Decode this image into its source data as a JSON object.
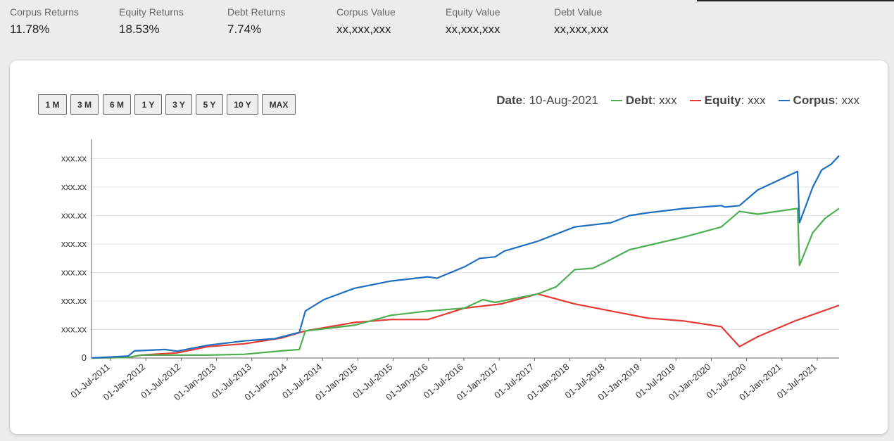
{
  "stats": [
    {
      "label": "Corpus Returns",
      "value": "11.78%"
    },
    {
      "label": "Equity Returns",
      "value": "18.53%"
    },
    {
      "label": "Debt Returns",
      "value": "7.74%"
    },
    {
      "label": "Corpus Value",
      "value": "xx,xxx,xxx"
    },
    {
      "label": "Equity Value",
      "value": "xx,xxx,xxx"
    },
    {
      "label": "Debt Value",
      "value": "xx,xxx,xxx"
    }
  ],
  "range_buttons": [
    "1 M",
    "3 M",
    "6 M",
    "1 Y",
    "3 Y",
    "5 Y",
    "10 Y",
    "MAX"
  ],
  "legend": {
    "date_label": "Date",
    "date_value": "10-Aug-2021",
    "items": [
      {
        "name": "Debt",
        "value": "xxx",
        "color": "#4caf50"
      },
      {
        "name": "Equity",
        "value": "xxx",
        "color": "#e53935"
      },
      {
        "name": "Corpus",
        "value": "xxx",
        "color": "#1e6fc0"
      }
    ]
  },
  "chart_data": {
    "type": "line",
    "title": "",
    "xlabel": "",
    "ylabel": "",
    "x_ticks": [
      "01-Jul-2011",
      "01-Jan-2012",
      "01-Jul-2012",
      "01-Jan-2013",
      "01-Jul-2013",
      "01-Jan-2014",
      "01-Jul-2014",
      "01-Jan-2015",
      "01-Jul-2015",
      "01-Jan-2016",
      "01-Jul-2016",
      "01-Jan-2017",
      "01-Jul-2017",
      "01-Jan-2018",
      "01-Jul-2018",
      "01-Jan-2019",
      "01-Jul-2019",
      "01-Jan-2020",
      "01-Jul-2020",
      "01-Jan-2021",
      "01-Jul-2021"
    ],
    "y_ticks": [
      "0",
      "xxx.xx",
      "xxx.xx",
      "xxx.xx",
      "xxx.xx",
      "xxx.xx",
      "xxx.xx",
      "xxx.xx"
    ],
    "ylim": [
      0,
      7.2
    ],
    "x_start": "2011-06-01",
    "x_end": "2021-08-10",
    "grid": true,
    "legend_position": "top-right",
    "series": [
      {
        "name": "Corpus",
        "color": "#1e6fc0",
        "points": [
          [
            "2011-06-01",
            0.0
          ],
          [
            "2011-12-01",
            0.07
          ],
          [
            "2012-01-01",
            0.25
          ],
          [
            "2012-06-01",
            0.3
          ],
          [
            "2012-08-01",
            0.24
          ],
          [
            "2013-01-01",
            0.45
          ],
          [
            "2013-07-01",
            0.6
          ],
          [
            "2013-12-01",
            0.68
          ],
          [
            "2014-04-01",
            0.9
          ],
          [
            "2014-05-01",
            1.65
          ],
          [
            "2014-08-01",
            2.05
          ],
          [
            "2015-01-01",
            2.45
          ],
          [
            "2015-07-01",
            2.7
          ],
          [
            "2016-01-01",
            2.85
          ],
          [
            "2016-02-15",
            2.8
          ],
          [
            "2016-07-01",
            3.2
          ],
          [
            "2016-09-15",
            3.5
          ],
          [
            "2016-12-01",
            3.55
          ],
          [
            "2017-01-15",
            3.75
          ],
          [
            "2017-07-01",
            4.1
          ],
          [
            "2018-01-01",
            4.6
          ],
          [
            "2018-07-01",
            4.75
          ],
          [
            "2018-10-01",
            5.0
          ],
          [
            "2019-01-01",
            5.1
          ],
          [
            "2019-07-01",
            5.25
          ],
          [
            "2020-01-01",
            5.35
          ],
          [
            "2020-01-20",
            5.3
          ],
          [
            "2020-04-01",
            5.35
          ],
          [
            "2020-07-01",
            5.9
          ],
          [
            "2021-01-15",
            6.55
          ],
          [
            "2021-01-25",
            4.75
          ],
          [
            "2021-04-01",
            6.0
          ],
          [
            "2021-05-15",
            6.6
          ],
          [
            "2021-07-01",
            6.8
          ],
          [
            "2021-08-10",
            7.1
          ]
        ]
      },
      {
        "name": "Debt",
        "color": "#4caf50",
        "points": [
          [
            "2011-06-01",
            0.0
          ],
          [
            "2011-12-01",
            0.02
          ],
          [
            "2012-02-01",
            0.1
          ],
          [
            "2013-01-01",
            0.1
          ],
          [
            "2013-07-01",
            0.13
          ],
          [
            "2014-01-01",
            0.25
          ],
          [
            "2014-04-01",
            0.3
          ],
          [
            "2014-05-01",
            0.95
          ],
          [
            "2015-01-01",
            1.15
          ],
          [
            "2015-07-01",
            1.5
          ],
          [
            "2016-01-01",
            1.65
          ],
          [
            "2016-07-01",
            1.75
          ],
          [
            "2016-10-01",
            2.05
          ],
          [
            "2016-12-01",
            1.95
          ],
          [
            "2017-07-01",
            2.25
          ],
          [
            "2017-10-01",
            2.5
          ],
          [
            "2018-01-01",
            3.1
          ],
          [
            "2018-04-01",
            3.15
          ],
          [
            "2018-06-01",
            3.35
          ],
          [
            "2018-10-01",
            3.8
          ],
          [
            "2019-01-01",
            3.95
          ],
          [
            "2019-07-01",
            4.25
          ],
          [
            "2020-01-01",
            4.6
          ],
          [
            "2020-04-01",
            5.15
          ],
          [
            "2020-07-01",
            5.05
          ],
          [
            "2021-01-15",
            5.25
          ],
          [
            "2021-01-25",
            3.25
          ],
          [
            "2021-04-01",
            4.4
          ],
          [
            "2021-06-01",
            4.9
          ],
          [
            "2021-08-10",
            5.25
          ]
        ]
      },
      {
        "name": "Equity",
        "color": "#e53935",
        "points": [
          [
            "2011-06-01",
            0.0
          ],
          [
            "2011-12-01",
            0.02
          ],
          [
            "2012-02-01",
            0.1
          ],
          [
            "2012-08-01",
            0.18
          ],
          [
            "2013-01-01",
            0.4
          ],
          [
            "2013-07-01",
            0.5
          ],
          [
            "2014-01-01",
            0.7
          ],
          [
            "2014-05-01",
            0.95
          ],
          [
            "2015-01-01",
            1.25
          ],
          [
            "2015-07-01",
            1.35
          ],
          [
            "2016-01-01",
            1.35
          ],
          [
            "2016-07-01",
            1.75
          ],
          [
            "2017-01-01",
            1.9
          ],
          [
            "2017-07-01",
            2.25
          ],
          [
            "2018-01-01",
            1.9
          ],
          [
            "2018-07-01",
            1.65
          ],
          [
            "2019-01-01",
            1.4
          ],
          [
            "2019-07-01",
            1.3
          ],
          [
            "2020-01-01",
            1.1
          ],
          [
            "2020-04-01",
            0.4
          ],
          [
            "2020-07-01",
            0.75
          ],
          [
            "2021-01-01",
            1.3
          ],
          [
            "2021-08-10",
            1.85
          ]
        ]
      }
    ]
  }
}
